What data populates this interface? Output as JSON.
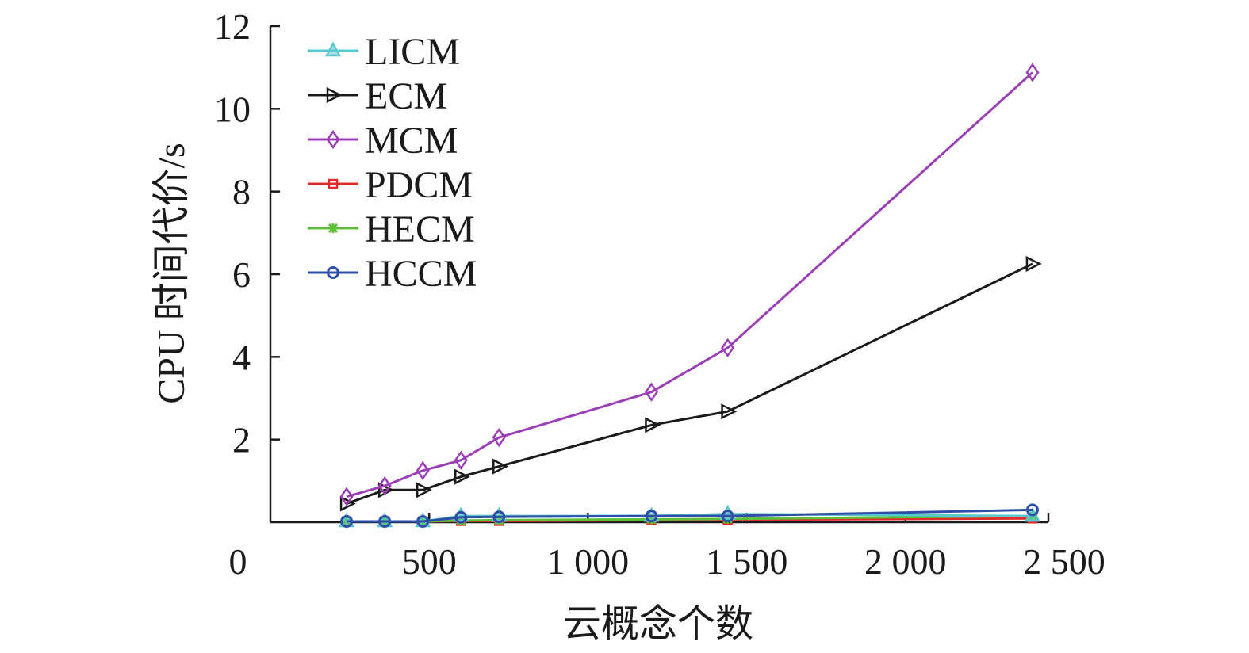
{
  "chart_data": {
    "type": "line",
    "title": "",
    "xlabel": "云概念个数",
    "ylabel": "CPU 时间代价/s",
    "xlim": [
      0,
      2500
    ],
    "ylim": [
      0,
      12
    ],
    "x_tick_labels": [
      "0",
      "500",
      "1 000",
      "1 500",
      "2 000",
      "2 500"
    ],
    "x_tick_values": [
      0,
      500,
      1000,
      1500,
      2000,
      2500
    ],
    "y_tick_labels": [
      "2",
      "4",
      "6",
      "8",
      "10",
      "12"
    ],
    "y_tick_values": [
      2,
      4,
      6,
      8,
      10,
      12
    ],
    "legend_position": "top-left",
    "x": [
      240,
      360,
      480,
      600,
      720,
      1200,
      1440,
      2400
    ],
    "series": [
      {
        "name": "LICM",
        "color": "#5bc8cd",
        "marker": "triangle",
        "values": [
          0.02,
          0.02,
          0.02,
          0.15,
          0.15,
          0.15,
          0.2,
          0.15
        ]
      },
      {
        "name": "ECM",
        "color": "#1a1a1a",
        "marker": "triangle-right",
        "values": [
          0.45,
          0.78,
          0.78,
          1.1,
          1.35,
          2.35,
          2.68,
          6.25
        ]
      },
      {
        "name": "MCM",
        "color": "#9b3fb5",
        "marker": "diamond",
        "values": [
          0.62,
          0.88,
          1.25,
          1.5,
          2.05,
          3.15,
          4.22,
          10.88
        ]
      },
      {
        "name": "PDCM",
        "color": "#e02b2b",
        "marker": "square",
        "values": [
          0.02,
          0.02,
          0.02,
          0.03,
          0.03,
          0.05,
          0.06,
          0.09
        ]
      },
      {
        "name": "HECM",
        "color": "#5fbf3a",
        "marker": "star",
        "values": [
          0.02,
          0.02,
          0.02,
          0.04,
          0.05,
          0.07,
          0.08,
          0.15
        ]
      },
      {
        "name": "HCCM",
        "color": "#2d4fa8",
        "marker": "circle",
        "values": [
          0.02,
          0.02,
          0.02,
          0.12,
          0.13,
          0.15,
          0.15,
          0.3
        ]
      }
    ]
  }
}
